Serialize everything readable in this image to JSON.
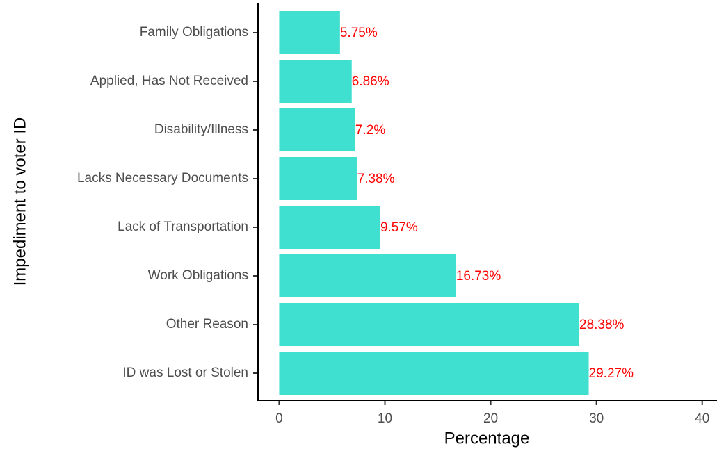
{
  "chart_data": {
    "type": "bar",
    "orientation": "horizontal",
    "x_label": "Percentage",
    "y_label": "Impediment to voter ID",
    "categories": [
      "Family Obligations",
      "Applied, Has Not Received",
      "Disability/Illness",
      "Lacks Necessary Documents",
      "Lack of Transportation",
      "Work Obligations",
      "Other Reason",
      "ID was Lost or Stolen"
    ],
    "values": [
      5.75,
      6.86,
      7.2,
      7.38,
      9.57,
      16.73,
      28.38,
      29.27
    ],
    "value_labels": [
      "5.75%",
      "6.86%",
      "7.2%",
      "7.38%",
      "9.57%",
      "16.73%",
      "28.38%",
      "29.27%"
    ],
    "color": "#40e0d0",
    "label_color": "#ff0000",
    "xlim": [
      -2,
      41.4
    ],
    "xticks": [
      0,
      10,
      20,
      30,
      40
    ],
    "grid": false
  }
}
